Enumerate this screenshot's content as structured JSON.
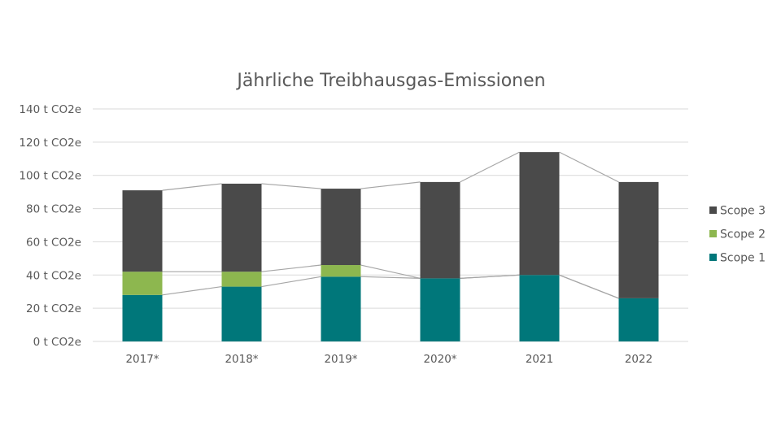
{
  "chart_data": {
    "type": "bar",
    "stacked": true,
    "title": "Jährliche Treibhausgas-Emissionen",
    "xlabel": "",
    "ylabel": "",
    "categories": [
      "2017*",
      "2018*",
      "2019*",
      "2020*",
      "2021",
      "2022"
    ],
    "y_ticks": [
      "0 t CO2e",
      "20 t CO2e",
      "40 t CO2e",
      "60 t CO2e",
      "80 t CO2e",
      "100 t CO2e",
      "120 t CO2e",
      "140 t CO2e"
    ],
    "ylim": [
      0,
      140
    ],
    "grid": true,
    "legend": "right",
    "series_lines": true,
    "series": [
      {
        "name": "Scope 1",
        "color": "#00777A",
        "values": [
          28,
          33,
          39,
          38,
          40,
          26
        ]
      },
      {
        "name": "Scope 2",
        "color": "#8DB74F",
        "values": [
          14,
          9,
          7,
          0,
          0,
          0
        ]
      },
      {
        "name": "Scope 3",
        "color": "#4A4A4A",
        "values": [
          49,
          53,
          46,
          58,
          74,
          70
        ]
      }
    ]
  }
}
